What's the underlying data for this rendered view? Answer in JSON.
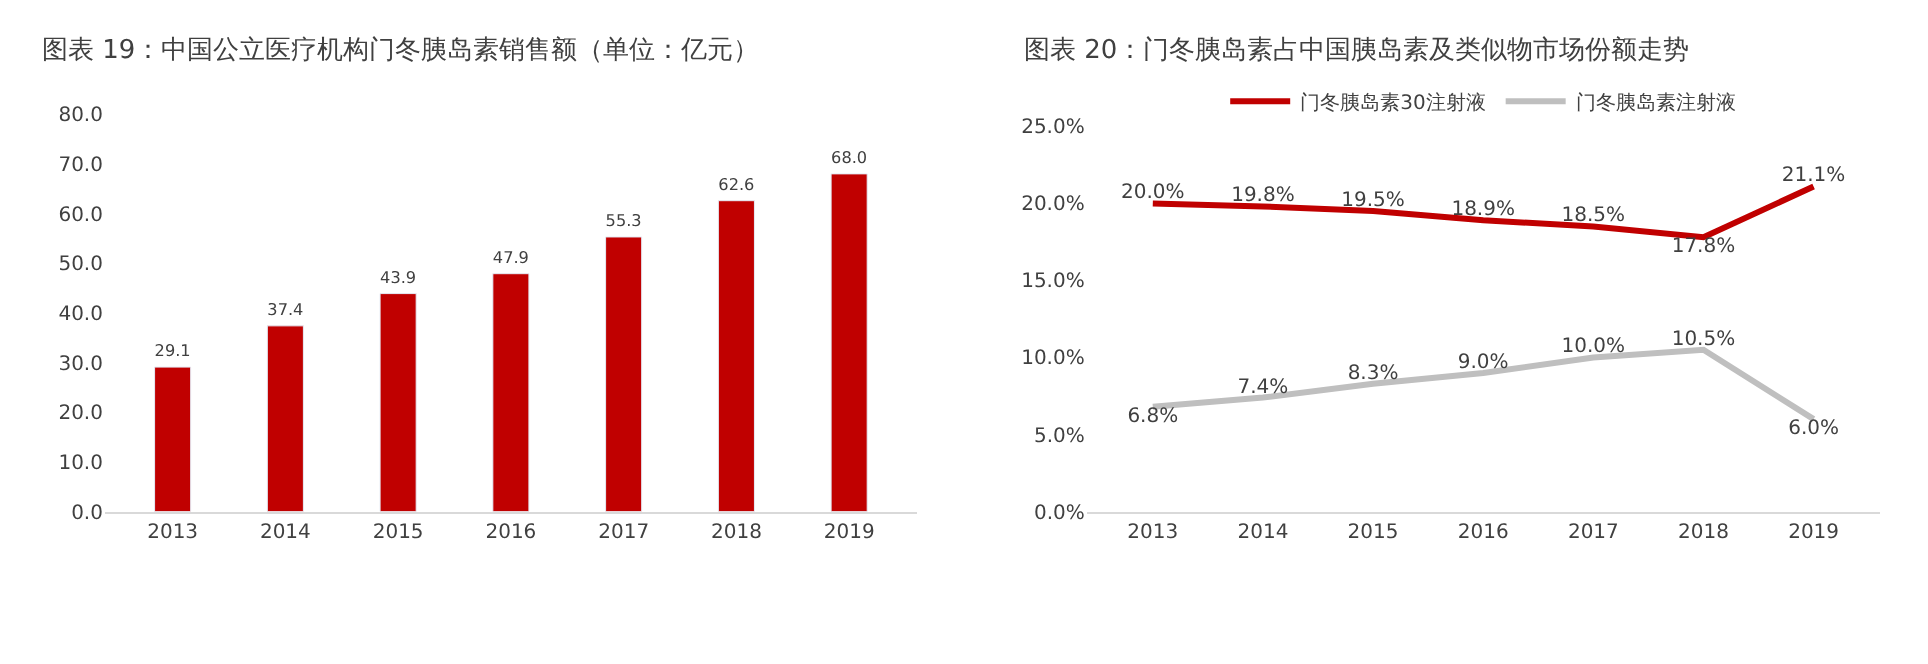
{
  "chart_data": [
    {
      "type": "bar",
      "title": "图表 19：中国公立医疗机构门冬胰岛素销售额（单位：亿元）",
      "categories": [
        "2013",
        "2014",
        "2015",
        "2016",
        "2017",
        "2018",
        "2019"
      ],
      "values": [
        29.1,
        37.4,
        43.9,
        47.9,
        55.3,
        62.6,
        68.0
      ],
      "value_labels": [
        "29.1",
        "37.4",
        "43.9",
        "47.9",
        "55.3",
        "62.6",
        "68.0"
      ],
      "color": "#c00000",
      "ylim": [
        0,
        80
      ],
      "yticks": [
        {
          "value": 0,
          "label": "0.0"
        },
        {
          "value": 10,
          "label": "10.0"
        },
        {
          "value": 20,
          "label": "20.0"
        },
        {
          "value": 30,
          "label": "30.0"
        },
        {
          "value": 40,
          "label": "40.0"
        },
        {
          "value": 50,
          "label": "50.0"
        },
        {
          "value": 60,
          "label": "60.0"
        },
        {
          "value": 70,
          "label": "70.0"
        },
        {
          "value": 80,
          "label": "80.0"
        }
      ],
      "grid": false,
      "legend": false
    },
    {
      "type": "line",
      "title": "图表 20：门冬胰岛素占中国胰岛素及类似物市场份额走势",
      "categories": [
        "2013",
        "2014",
        "2015",
        "2016",
        "2017",
        "2018",
        "2019"
      ],
      "series": [
        {
          "name": "门冬胰岛素30注射液",
          "color": "#c00000",
          "values": [
            20.0,
            19.8,
            19.5,
            18.9,
            18.5,
            17.8,
            21.1
          ],
          "value_labels": [
            "20.0%",
            "19.8%",
            "19.5%",
            "18.9%",
            "18.5%",
            "17.8%",
            "21.1%"
          ]
        },
        {
          "name": "门冬胰岛素注射液",
          "color": "#bfbfbf",
          "values": [
            6.8,
            7.4,
            8.3,
            9.0,
            10.0,
            10.5,
            6.0
          ],
          "value_labels": [
            "6.8%",
            "7.4%",
            "8.3%",
            "9.0%",
            "10.0%",
            "10.5%",
            "6.0%"
          ]
        }
      ],
      "ylim": [
        0,
        25
      ],
      "yticks": [
        {
          "value": 0,
          "label": "0.0%"
        },
        {
          "value": 5,
          "label": "5.0%"
        },
        {
          "value": 10,
          "label": "10.0%"
        },
        {
          "value": 15,
          "label": "15.0%"
        },
        {
          "value": 20,
          "label": "20.0%"
        },
        {
          "value": 25,
          "label": "25.0%"
        }
      ],
      "grid": false,
      "legend": "top",
      "marker": "none",
      "line_style": "solid"
    }
  ]
}
